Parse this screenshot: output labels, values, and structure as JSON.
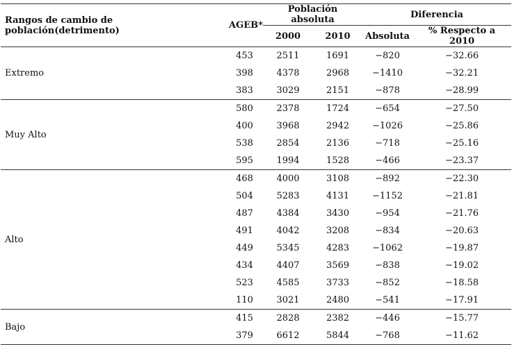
{
  "header": {
    "rangos": "Rangos de cambio de población(detrimento)",
    "ageb": "AGEB*",
    "poblacion": "Población absoluta",
    "diferencia": "Diferencia",
    "y2000": "2000",
    "y2010": "2010",
    "absoluta": "Absoluta",
    "porcentaje": "% Respecto a 2010"
  },
  "groups": [
    {
      "name": "Extremo",
      "rows": [
        [
          "453",
          "2511",
          "1691",
          "−820",
          "−32.66"
        ],
        [
          "398",
          "4378",
          "2968",
          "−1410",
          "−32.21"
        ],
        [
          "383",
          "3029",
          "2151",
          "−878",
          "−28.99"
        ]
      ]
    },
    {
      "name": "Muy Alto",
      "rows": [
        [
          "580",
          "2378",
          "1724",
          "−654",
          "−27.50"
        ],
        [
          "400",
          "3968",
          "2942",
          "−1026",
          "−25.86"
        ],
        [
          "538",
          "2854",
          "2136",
          "−718",
          "−25.16"
        ],
        [
          "595",
          "1994",
          "1528",
          "−466",
          "−23.37"
        ]
      ]
    },
    {
      "name": "Alto",
      "rows": [
        [
          "468",
          "4000",
          "3108",
          "−892",
          "−22.30"
        ],
        [
          "504",
          "5283",
          "4131",
          "−1152",
          "−21.81"
        ],
        [
          "487",
          "4384",
          "3430",
          "−954",
          "−21.76"
        ],
        [
          "491",
          "4042",
          "3208",
          "−834",
          "−20.63"
        ],
        [
          "449",
          "5345",
          "4283",
          "−1062",
          "−19.87"
        ],
        [
          "434",
          "4407",
          "3569",
          "−838",
          "−19.02"
        ],
        [
          "523",
          "4585",
          "3733",
          "−852",
          "−18.58"
        ],
        [
          "110",
          "3021",
          "2480",
          "−541",
          "−17.91"
        ]
      ]
    },
    {
      "name": "Bajo",
      "rows": [
        [
          "415",
          "2828",
          "2382",
          "−446",
          "−15.77"
        ],
        [
          "379",
          "6612",
          "5844",
          "−768",
          "−11.62"
        ]
      ]
    }
  ]
}
